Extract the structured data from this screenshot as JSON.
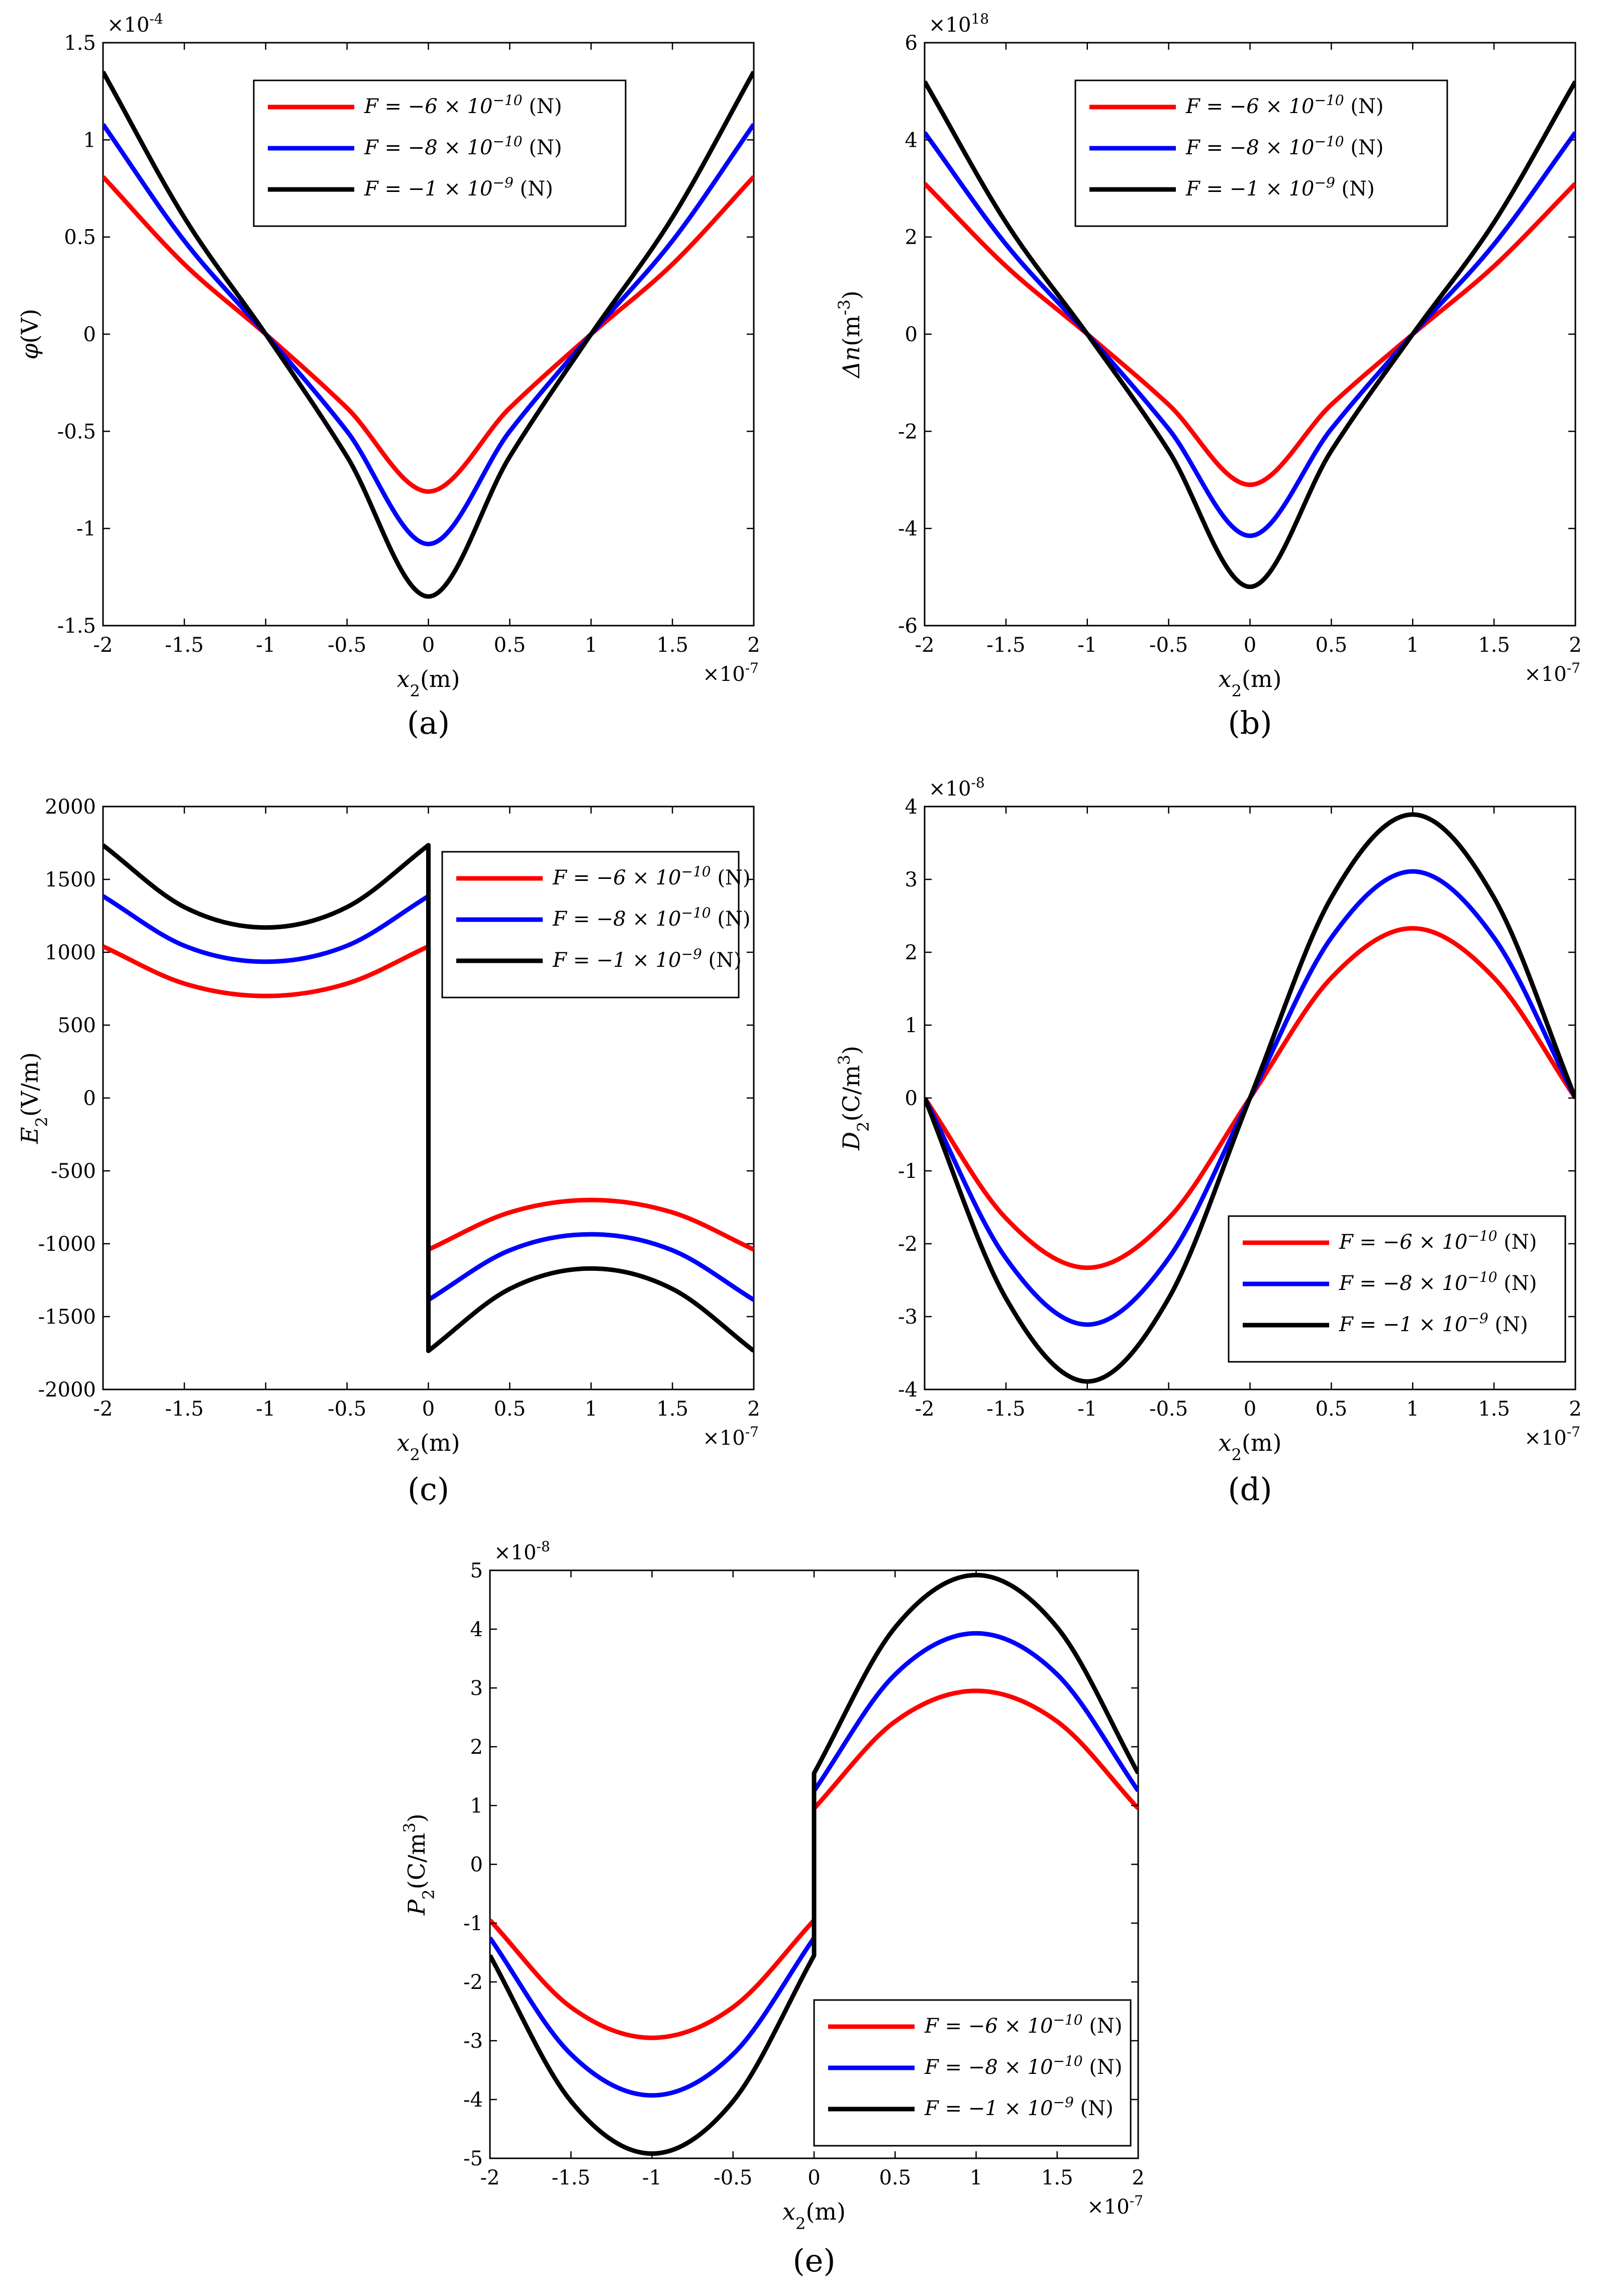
{
  "chart_data": [
    {
      "panel": "(a)",
      "type": "line",
      "xlabel": "x2(m)",
      "ylabel": "φ(V)",
      "x_multiplier": "×10^-7",
      "y_multiplier": "×10^-4",
      "xlim": [
        -2,
        2
      ],
      "ylim": [
        -1.5,
        1.5
      ],
      "xticks": [
        -2,
        -1.5,
        -1,
        -0.5,
        0,
        0.5,
        1,
        1.5,
        2
      ],
      "yticks": [
        -1.5,
        -1,
        -0.5,
        0,
        0.5,
        1,
        1.5
      ],
      "legend": "top-center",
      "grid": false,
      "series": [
        {
          "name": "F = −6 × 10^−10 (N)",
          "color": "#ff0000",
          "x": [
            -2,
            -1.5,
            -1,
            -0.5,
            0,
            0.5,
            1,
            1.5,
            2
          ],
          "values": [
            0.81,
            0.36,
            0,
            -0.38,
            -0.81,
            -0.38,
            0,
            0.36,
            0.81
          ]
        },
        {
          "name": "F = −8 × 10^−10 (N)",
          "color": "#0000ff",
          "x": [
            -2,
            -1.5,
            -1,
            -0.5,
            0,
            0.5,
            1,
            1.5,
            2
          ],
          "values": [
            1.08,
            0.48,
            0,
            -0.5,
            -1.08,
            -0.5,
            0,
            0.48,
            1.08
          ]
        },
        {
          "name": "F = −1 × 10^−9 (N)",
          "color": "#000000",
          "x": [
            -2,
            -1.5,
            -1,
            -0.5,
            0,
            0.5,
            1,
            1.5,
            2
          ],
          "values": [
            1.35,
            0.6,
            0,
            -0.63,
            -1.35,
            -0.63,
            0,
            0.6,
            1.35
          ]
        }
      ]
    },
    {
      "panel": "(b)",
      "type": "line",
      "xlabel": "x2(m)",
      "ylabel": "Δn(m^-3)",
      "x_multiplier": "×10^-7",
      "y_multiplier": "×10^18",
      "xlim": [
        -2,
        2
      ],
      "ylim": [
        -6,
        6
      ],
      "xticks": [
        -2,
        -1.5,
        -1,
        -0.5,
        0,
        0.5,
        1,
        1.5,
        2
      ],
      "yticks": [
        -6,
        -4,
        -2,
        0,
        2,
        4,
        6
      ],
      "legend": "top-center",
      "grid": false,
      "series": [
        {
          "name": "F = −6 × 10^−10 (N)",
          "color": "#ff0000",
          "x": [
            -2,
            -1.5,
            -1,
            -0.5,
            0,
            0.5,
            1,
            1.5,
            2
          ],
          "values": [
            3.1,
            1.4,
            0,
            -1.45,
            -3.1,
            -1.45,
            0,
            1.4,
            3.1
          ]
        },
        {
          "name": "F = −8 × 10^−10 (N)",
          "color": "#0000ff",
          "x": [
            -2,
            -1.5,
            -1,
            -0.5,
            0,
            0.5,
            1,
            1.5,
            2
          ],
          "values": [
            4.15,
            1.85,
            0,
            -1.95,
            -4.15,
            -1.95,
            0,
            1.85,
            4.15
          ]
        },
        {
          "name": "F = −1 × 10^−9 (N)",
          "color": "#000000",
          "x": [
            -2,
            -1.5,
            -1,
            -0.5,
            0,
            0.5,
            1,
            1.5,
            2
          ],
          "values": [
            5.2,
            2.3,
            0,
            -2.4,
            -5.2,
            -2.4,
            0,
            2.3,
            5.2
          ]
        }
      ]
    },
    {
      "panel": "(c)",
      "type": "line",
      "xlabel": "x2(m)",
      "ylabel": "E2(V/m)",
      "x_multiplier": "×10^-7",
      "y_multiplier": "",
      "xlim": [
        -2,
        2
      ],
      "ylim": [
        -2000,
        2000
      ],
      "xticks": [
        -2,
        -1.5,
        -1,
        -0.5,
        0,
        0.5,
        1,
        1.5,
        2
      ],
      "yticks": [
        -2000,
        -1500,
        -1000,
        -500,
        0,
        500,
        1000,
        1500,
        2000
      ],
      "legend": "top-right",
      "grid": false,
      "series": [
        {
          "name": "F = −6 × 10^−10 (N)",
          "color": "#ff0000",
          "x": [
            -2,
            -1.5,
            -1,
            -0.5,
            0,
            0,
            0.5,
            1,
            1.5,
            2
          ],
          "values": [
            1040,
            785,
            700,
            785,
            1040,
            -1040,
            -785,
            -700,
            -785,
            -1040
          ]
        },
        {
          "name": "F = −8 × 10^−10 (N)",
          "color": "#0000ff",
          "x": [
            -2,
            -1.5,
            -1,
            -0.5,
            0,
            0,
            0.5,
            1,
            1.5,
            2
          ],
          "values": [
            1385,
            1045,
            935,
            1045,
            1385,
            -1385,
            -1045,
            -935,
            -1045,
            -1385
          ]
        },
        {
          "name": "F = −1 × 10^−9 (N)",
          "color": "#000000",
          "x": [
            -2,
            -1.5,
            -1,
            -0.5,
            0,
            0,
            0.5,
            1,
            1.5,
            2
          ],
          "values": [
            1735,
            1310,
            1170,
            1310,
            1735,
            -1735,
            -1310,
            -1170,
            -1310,
            -1735
          ]
        }
      ]
    },
    {
      "panel": "(d)",
      "type": "line",
      "xlabel": "x2(m)",
      "ylabel": "D2(C/m^3)",
      "x_multiplier": "×10^-7",
      "y_multiplier": "×10^-8",
      "xlim": [
        -2,
        2
      ],
      "ylim": [
        -4,
        4
      ],
      "xticks": [
        -2,
        -1.5,
        -1,
        -0.5,
        0,
        0.5,
        1,
        1.5,
        2
      ],
      "yticks": [
        -4,
        -3,
        -2,
        -1,
        0,
        1,
        2,
        3,
        4
      ],
      "legend": "bottom-right",
      "grid": false,
      "series": [
        {
          "name": "F = −6 × 10^−10 (N)",
          "color": "#ff0000",
          "x": [
            -2,
            -1.5,
            -1,
            -0.5,
            0,
            0.5,
            1,
            1.5,
            2
          ],
          "values": [
            0,
            -1.65,
            -2.33,
            -1.65,
            0,
            1.65,
            2.33,
            1.65,
            0
          ]
        },
        {
          "name": "F = −8 × 10^−10 (N)",
          "color": "#0000ff",
          "x": [
            -2,
            -1.5,
            -1,
            -0.5,
            0,
            0.5,
            1,
            1.5,
            2
          ],
          "values": [
            0,
            -2.2,
            -3.11,
            -2.2,
            0,
            2.2,
            3.11,
            2.2,
            0
          ]
        },
        {
          "name": "F = −1 × 10^−9 (N)",
          "color": "#000000",
          "x": [
            -2,
            -1.5,
            -1,
            -0.5,
            0,
            0.5,
            1,
            1.5,
            2
          ],
          "values": [
            0,
            -2.75,
            -3.89,
            -2.75,
            0,
            2.75,
            3.89,
            2.75,
            0
          ]
        }
      ]
    },
    {
      "panel": "(e)",
      "type": "line",
      "xlabel": "x2(m)",
      "ylabel": "P2(C/m^3)",
      "x_multiplier": "×10^-7",
      "y_multiplier": "×10^-8",
      "xlim": [
        -2,
        2
      ],
      "ylim": [
        -5,
        5
      ],
      "xticks": [
        -2,
        -1.5,
        -1,
        -0.5,
        0,
        0.5,
        1,
        1.5,
        2
      ],
      "yticks": [
        -5,
        -4,
        -3,
        -2,
        -1,
        0,
        1,
        2,
        3,
        4,
        5
      ],
      "legend": "bottom-right",
      "grid": false,
      "series": [
        {
          "name": "F = −6 × 10^−10 (N)",
          "color": "#ff0000",
          "x": [
            -2,
            -1.5,
            -1,
            -0.5,
            0,
            0,
            0.5,
            1,
            1.5,
            2
          ],
          "values": [
            -0.95,
            -2.43,
            -2.95,
            -2.43,
            -0.95,
            0.95,
            2.43,
            2.95,
            2.43,
            0.95
          ]
        },
        {
          "name": "F = −8 × 10^−10 (N)",
          "color": "#0000ff",
          "x": [
            -2,
            -1.5,
            -1,
            -0.5,
            0,
            0,
            0.5,
            1,
            1.5,
            2
          ],
          "values": [
            -1.25,
            -3.23,
            -3.93,
            -3.23,
            -1.25,
            1.25,
            3.23,
            3.93,
            3.23,
            1.25
          ]
        },
        {
          "name": "F = −1 × 10^−9 (N)",
          "color": "#000000",
          "x": [
            -2,
            -1.5,
            -1,
            -0.5,
            0,
            0,
            0.5,
            1,
            1.5,
            2
          ],
          "values": [
            -1.55,
            -4.03,
            -4.92,
            -4.03,
            -1.55,
            1.55,
            4.03,
            4.92,
            4.03,
            1.55
          ]
        }
      ]
    }
  ]
}
